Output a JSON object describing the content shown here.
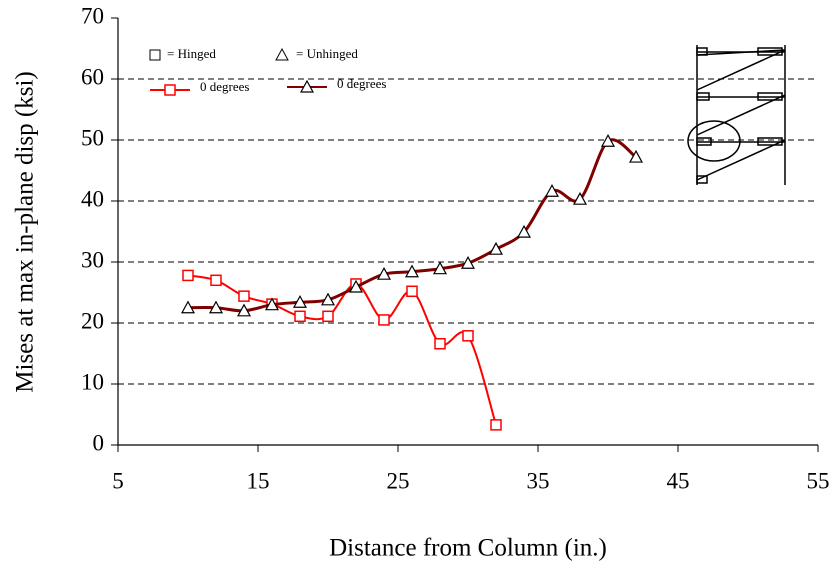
{
  "chart_data": {
    "type": "line",
    "xlabel": "Distance from Column (in.)",
    "ylabel": "Mises at max in-plane disp (ksi)",
    "xlim": [
      5,
      55
    ],
    "xticks": [
      5,
      15,
      25,
      35,
      45,
      55
    ],
    "ylim": [
      0,
      70
    ],
    "yticks": [
      0,
      10,
      20,
      30,
      40,
      50,
      60,
      70
    ],
    "grid": true,
    "legend_position": "top-left",
    "legend_notes": [
      "= Hinged",
      "= Unhinged"
    ],
    "series": [
      {
        "name": "0 degrees",
        "color": "#ff0000",
        "marker": "square",
        "x": [
          10,
          12,
          14,
          16,
          18,
          20,
          22,
          24,
          26,
          28,
          30,
          32
        ],
        "values": [
          27.8,
          27.0,
          24.4,
          23.1,
          21.1,
          21.1,
          26.4,
          20.5,
          25.2,
          16.6,
          17.9,
          3.3
        ]
      },
      {
        "name": "0 degrees",
        "color": "#800000",
        "marker": "triangle",
        "x": [
          10,
          12,
          14,
          16,
          18,
          20,
          22,
          24,
          26,
          28,
          30,
          32,
          34,
          36,
          38,
          40,
          42
        ],
        "values": [
          22.5,
          22.5,
          22.0,
          23.0,
          23.4,
          23.8,
          25.9,
          28.0,
          28.4,
          28.9,
          29.8,
          32.1,
          34.9,
          41.6,
          40.3,
          49.8,
          47.2
        ]
      }
    ]
  }
}
